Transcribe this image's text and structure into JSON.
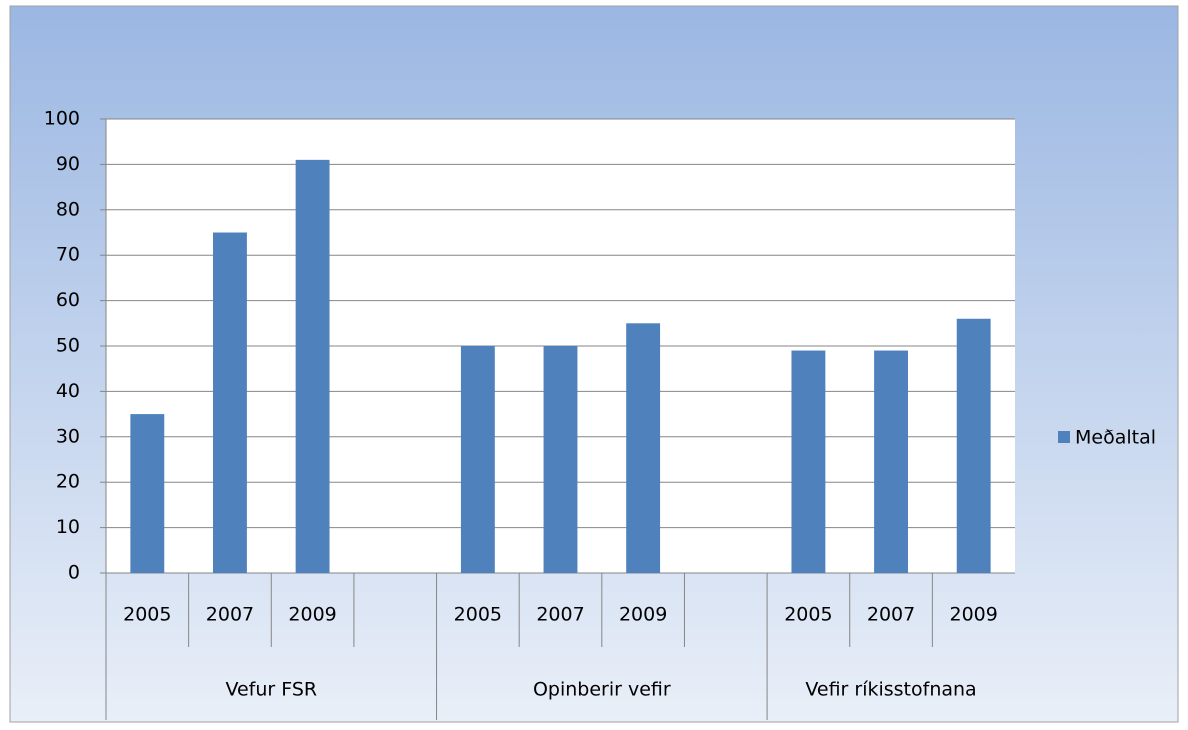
{
  "chart_data": {
    "type": "bar",
    "groups": [
      {
        "label": "Vefur FSR",
        "categories": [
          "2005",
          "2007",
          "2009",
          null
        ],
        "values": [
          35,
          75,
          91,
          null
        ]
      },
      {
        "label": "Opinberir vefir",
        "categories": [
          "2005",
          "2007",
          "2009",
          null
        ],
        "values": [
          50,
          50,
          55,
          null
        ]
      },
      {
        "label": "Vefir ríkisstofnana",
        "categories": [
          "2005",
          "2007",
          "2009"
        ],
        "values": [
          49,
          49,
          56
        ]
      }
    ],
    "series_name": "Meðaltal",
    "color": "#4f81bd",
    "ylim": [
      0,
      100
    ],
    "yticks": [
      0,
      10,
      20,
      30,
      40,
      50,
      60,
      70,
      80,
      90,
      100
    ],
    "grid": true,
    "legend": "right"
  }
}
